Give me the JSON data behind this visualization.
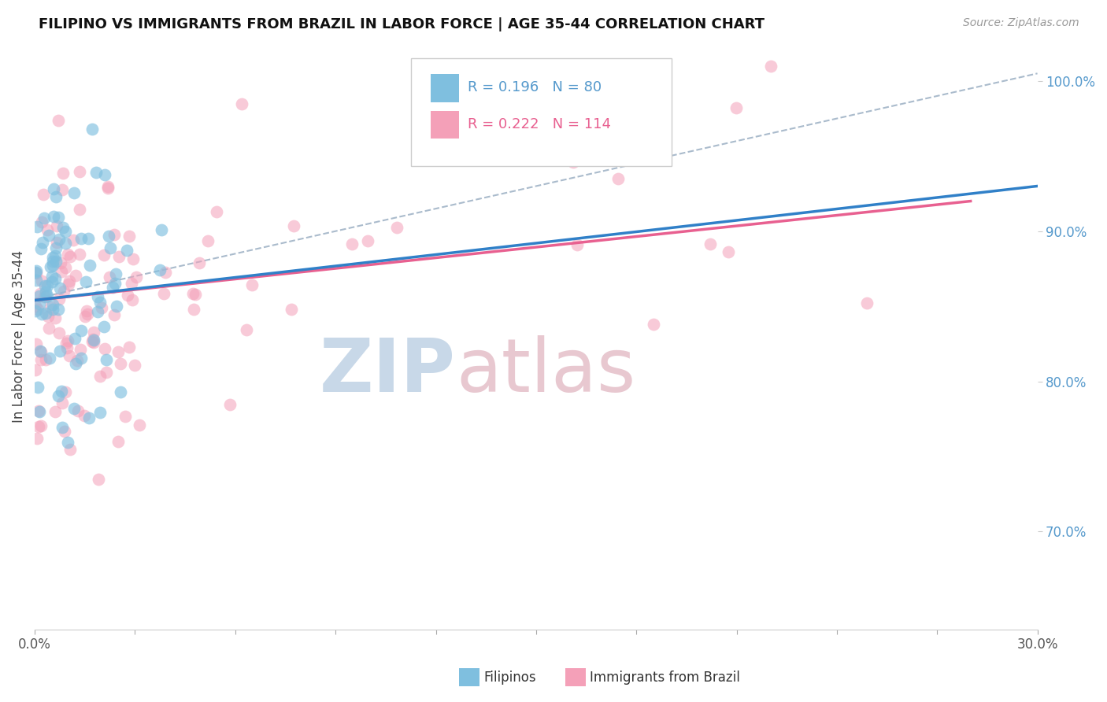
{
  "title": "FILIPINO VS IMMIGRANTS FROM BRAZIL IN LABOR FORCE | AGE 35-44 CORRELATION CHART",
  "source": "Source: ZipAtlas.com",
  "ylabel": "In Labor Force | Age 35-44",
  "xlim": [
    0.0,
    0.3
  ],
  "ylim": [
    0.635,
    1.025
  ],
  "ytick_labels_right": [
    "70.0%",
    "80.0%",
    "90.0%",
    "100.0%"
  ],
  "yticks_right": [
    0.7,
    0.8,
    0.9,
    1.0
  ],
  "filipino_color": "#7fbfdf",
  "brazil_color": "#f4a0b8",
  "filipino_R": 0.196,
  "filipino_N": 80,
  "brazil_R": 0.222,
  "brazil_N": 114,
  "background_color": "#ffffff",
  "grid_color": "#cccccc",
  "watermark_zip_color": "#c8d8e8",
  "watermark_atlas_color": "#e8c8d0",
  "legend_text_color": "#5599cc",
  "xtick_positions": [
    0.0,
    0.03,
    0.06,
    0.09,
    0.12,
    0.15,
    0.18,
    0.21,
    0.24,
    0.27,
    0.3
  ]
}
